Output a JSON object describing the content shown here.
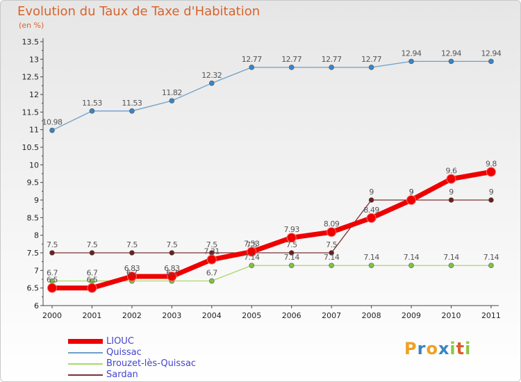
{
  "chart_data": {
    "type": "line",
    "title": "Evolution du Taux de Taxe d'Habitation",
    "unit_label": "(en %)",
    "x": [
      "2000",
      "2001",
      "2002",
      "2003",
      "2004",
      "2005",
      "2006",
      "2007",
      "2008",
      "2009",
      "2010",
      "2011"
    ],
    "ylim": [
      6,
      13.5
    ],
    "yticks": [
      "6",
      "6.5",
      "7",
      "7.5",
      "8",
      "8.5",
      "9",
      "9.5",
      "10",
      "10.5",
      "11",
      "11.5",
      "12",
      "12.5",
      "13",
      "13.5"
    ],
    "grid": false,
    "legend_position": "bottom-left",
    "series": [
      {
        "name": "Quissac",
        "color": "#6d9fc9",
        "marker_color": "#3b83c4",
        "values": [
          10.98,
          11.53,
          11.53,
          11.82,
          12.32,
          12.77,
          12.77,
          12.77,
          12.77,
          12.94,
          12.94,
          12.94
        ],
        "labels": [
          "10.98",
          "11.53",
          "11.53",
          "11.82",
          "12.32",
          "12.77",
          "12.77",
          "12.77",
          "12.77",
          "12.94",
          "12.94",
          "12.94"
        ]
      },
      {
        "name": "Sardan",
        "color": "#7a3030",
        "marker_color": "#6a1f1f",
        "values": [
          7.5,
          7.5,
          7.5,
          7.5,
          7.5,
          7.5,
          7.5,
          7.5,
          9,
          9,
          9,
          9
        ],
        "labels": [
          "7.5",
          "7.5",
          "7.5",
          "7.5",
          "7.5",
          "7.5",
          "7.5",
          "7.5",
          "9",
          "9",
          "9",
          "9"
        ]
      },
      {
        "name": "Brouzet-lès-Quissac",
        "color": "#a6d96a",
        "marker_color": "#7fc241",
        "values": [
          6.7,
          6.7,
          6.7,
          6.7,
          6.7,
          7.14,
          7.14,
          7.14,
          7.14,
          7.14,
          7.14,
          7.14
        ],
        "labels": [
          "6.7",
          "6.7",
          "6.7",
          "6.7",
          "6.7",
          "7.14",
          "7.14",
          "7.14",
          "7.14",
          "7.14",
          "7.14",
          "7.14"
        ]
      },
      {
        "name": "LIOUC",
        "color": "#ee0000",
        "marker_color": "#ee0000",
        "values": [
          6.5,
          6.5,
          6.83,
          6.83,
          7.31,
          7.53,
          7.93,
          8.09,
          8.49,
          9,
          9.6,
          9.8
        ],
        "labels": [
          "6.5",
          "6.5",
          "6.83",
          "6.83",
          "7.31",
          "7.53",
          "7.93",
          "8.09",
          "8.49",
          "9",
          "9.6",
          "9.8"
        ]
      }
    ],
    "legend": [
      "LIOUC",
      "Quissac",
      "Brouzet-lès-Quissac",
      "Sardan"
    ]
  },
  "logo": {
    "letters": [
      "P",
      "r",
      "o",
      "x",
      "i",
      "t",
      "i"
    ],
    "colors": [
      "#f0a020",
      "#3b83c4",
      "#f0a020",
      "#3b83c4",
      "#8cc63f",
      "#e05a2a",
      "#8cc63f"
    ]
  }
}
